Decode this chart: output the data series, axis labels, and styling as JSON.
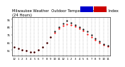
{
  "title": "Milwaukee Weather  Outdoor Temperature vs Heat Index\n(24 Hours)",
  "legend_colors": [
    "#0000cc",
    "#cc0000"
  ],
  "background_color": "#ffffff",
  "plot_bg_color": "#ffffff",
  "grid_color": "#888888",
  "x_values": [
    0,
    1,
    2,
    3,
    4,
    5,
    6,
    7,
    8,
    9,
    10,
    11,
    12,
    13,
    14,
    15,
    16,
    17,
    18,
    19,
    20,
    21,
    22,
    23
  ],
  "temp_values": [
    59,
    57,
    55,
    54,
    53,
    53,
    55,
    59,
    65,
    72,
    78,
    83,
    87,
    89,
    88,
    86,
    83,
    80,
    76,
    72,
    68,
    65,
    62,
    60
  ],
  "heat_index_values": [
    59,
    57,
    55,
    54,
    53,
    53,
    55,
    59,
    65,
    72,
    79,
    85,
    90,
    93,
    91,
    88,
    85,
    82,
    79,
    75,
    70,
    66,
    63,
    61
  ],
  "temp_color": "#ff0000",
  "heat_color": "#000000",
  "ylim": [
    48,
    98
  ],
  "ytick_values": [
    55,
    65,
    75,
    85,
    95
  ],
  "xlim_min": -0.5,
  "xlim_max": 23.5,
  "xtick_labels": [
    "12",
    "1",
    "2",
    "3",
    "4",
    "5",
    "6",
    "7",
    "8",
    "9",
    "10",
    "11",
    "12",
    "1",
    "2",
    "3",
    "4",
    "5",
    "6",
    "7",
    "8",
    "9",
    "10",
    "11"
  ],
  "title_fontsize": 3.8,
  "tick_fontsize": 2.8,
  "marker_size": 1.2
}
